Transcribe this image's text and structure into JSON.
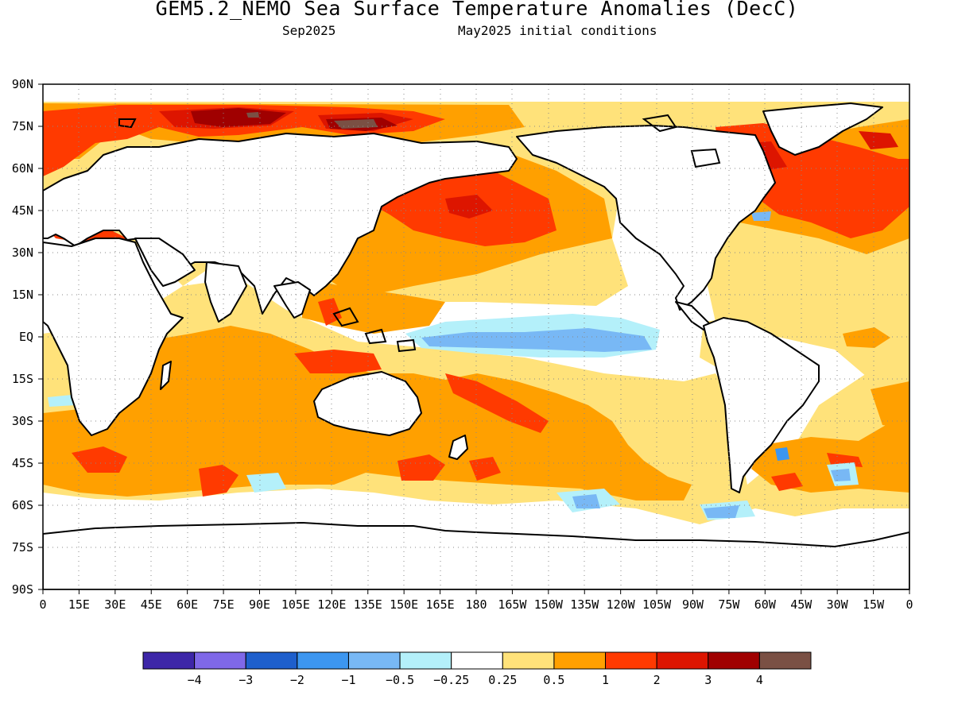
{
  "title": "GEM5.2_NEMO Sea Surface Temperature Anomalies (DecC)",
  "subtitle_left": "Sep2025",
  "subtitle_right": "May2025 initial conditions",
  "lat_labels": [
    "90N",
    "75N",
    "60N",
    "45N",
    "30N",
    "15N",
    "EQ",
    "15S",
    "30S",
    "45S",
    "60S",
    "75S",
    "90S"
  ],
  "lon_labels": [
    "0",
    "15E",
    "30E",
    "45E",
    "60E",
    "75E",
    "90E",
    "105E",
    "120E",
    "135E",
    "150E",
    "165E",
    "180",
    "165W",
    "150W",
    "135W",
    "120W",
    "105W",
    "90W",
    "75W",
    "60W",
    "45W",
    "30W",
    "15W",
    "0"
  ],
  "colorbar": {
    "colors": [
      "#3d26a8",
      "#7f68e8",
      "#1e5fcc",
      "#3c96f0",
      "#78b8f5",
      "#b4f0fa",
      "#ffffff",
      "#ffe27a",
      "#ffa000",
      "#ff3a00",
      "#dd1500",
      "#a00000",
      "#7a5044"
    ],
    "labels": [
      "−4",
      "−3",
      "−2",
      "−1",
      "−0.5",
      "−0.25",
      "0.25",
      "0.5",
      "1",
      "2",
      "3",
      "4"
    ]
  },
  "palette": {
    "light_orange": "#ffe27a",
    "orange": "#ffa000",
    "red_orange": "#ff3a00",
    "red": "#dd1500",
    "dark_red": "#a00000",
    "brown": "#7a5044",
    "pale_blue": "#b4f0fa",
    "light_blue": "#78b8f5",
    "blue": "#3c96f0"
  }
}
